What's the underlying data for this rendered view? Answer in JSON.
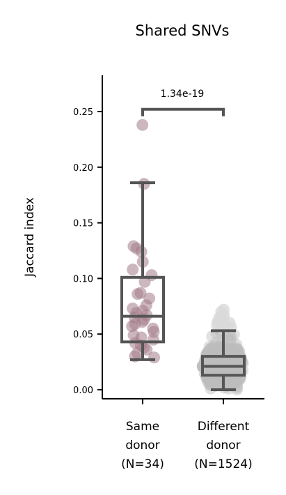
{
  "chart_data": {
    "type": "box",
    "title": "Shared SNVs",
    "xlabel": "",
    "ylabel": "Jaccard index",
    "ylim": [
      -0.008,
      0.28
    ],
    "yticks": [
      0.0,
      0.05,
      0.1,
      0.15,
      0.2,
      0.25
    ],
    "ytick_labels": [
      "0.00",
      "0.05",
      "0.10",
      "0.15",
      "0.20",
      "0.25"
    ],
    "grid": false,
    "categories": [
      {
        "lines": [
          "Same",
          "donor",
          "(N=34)"
        ],
        "n": 34,
        "point_color": "#a27c89",
        "box": {
          "whisker_low": 0.027,
          "q1": 0.043,
          "median": 0.066,
          "q3": 0.101,
          "whisker_high": 0.186
        },
        "points": [
          0.238,
          0.185,
          0.129,
          0.127,
          0.124,
          0.115,
          0.108,
          0.103,
          0.097,
          0.087,
          0.086,
          0.082,
          0.076,
          0.073,
          0.071,
          0.069,
          0.067,
          0.065,
          0.063,
          0.061,
          0.059,
          0.057,
          0.055,
          0.052,
          0.049,
          0.047,
          0.045,
          0.042,
          0.04,
          0.038,
          0.036,
          0.033,
          0.03,
          0.029
        ]
      },
      {
        "lines": [
          "Different",
          "donor",
          "(N=1524)"
        ],
        "n": 1524,
        "point_color": "#bdbdbd",
        "box": {
          "whisker_low": 0.0,
          "q1": 0.013,
          "median": 0.021,
          "q3": 0.03,
          "whisker_high": 0.053
        },
        "points_range": [
          0.0,
          0.072
        ],
        "outliers": [
          0.072,
          0.07,
          0.067,
          0.065,
          0.063,
          0.062,
          0.061,
          0.06,
          0.058,
          0.057,
          0.056,
          0.055
        ]
      }
    ],
    "comparison": {
      "label": "1.34e-19",
      "y": 0.252
    },
    "box_color": "#555555"
  }
}
